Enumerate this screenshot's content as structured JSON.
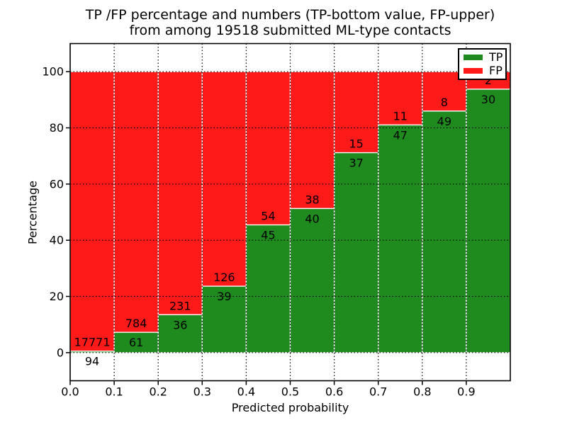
{
  "chart_data": {
    "type": "bar",
    "stacked": true,
    "title_lines": [
      "TP /FP percentage and numbers (TP-bottom value, FP-upper)",
      "from among 19518 submitted ML-type contacts"
    ],
    "xlabel": "Predicted probability",
    "ylabel": "Percentage",
    "total_contacts": 19518,
    "xlim": [
      0.0,
      1.0
    ],
    "ylim": [
      -10,
      110
    ],
    "bin_width": 0.1,
    "bin_starts": [
      0.0,
      0.1,
      0.2,
      0.3,
      0.4,
      0.5,
      0.6,
      0.7,
      0.8,
      0.9
    ],
    "x_tick_labels": [
      "0.0",
      "0.1",
      "0.2",
      "0.3",
      "0.4",
      "0.5",
      "0.6",
      "0.7",
      "0.8",
      "0.9"
    ],
    "y_tick_values": [
      0,
      20,
      40,
      60,
      80,
      100
    ],
    "grid": "dotted",
    "colors": {
      "tp": "#1f8b1f",
      "fp": "#ff1a1a",
      "bar_edge": "#ffffff",
      "grid_line": "#000000",
      "axis": "#000000"
    },
    "series": [
      {
        "name": "TP",
        "position": "bottom",
        "color": "#1f8b1f",
        "counts": [
          94,
          61,
          36,
          39,
          45,
          40,
          37,
          47,
          49,
          30
        ]
      },
      {
        "name": "FP",
        "position": "top",
        "color": "#ff1a1a",
        "counts": [
          17771,
          784,
          231,
          126,
          54,
          38,
          15,
          11,
          8,
          2
        ]
      }
    ],
    "tp_percent_by_bin": [
      0.53,
      7.22,
      13.48,
      23.64,
      45.45,
      51.28,
      71.15,
      81.03,
      85.96,
      93.75
    ],
    "legend": {
      "location": "upper right",
      "entries": [
        {
          "label": "TP",
          "color": "#1f8b1f"
        },
        {
          "label": "FP",
          "color": "#ff1a1a"
        }
      ]
    }
  }
}
